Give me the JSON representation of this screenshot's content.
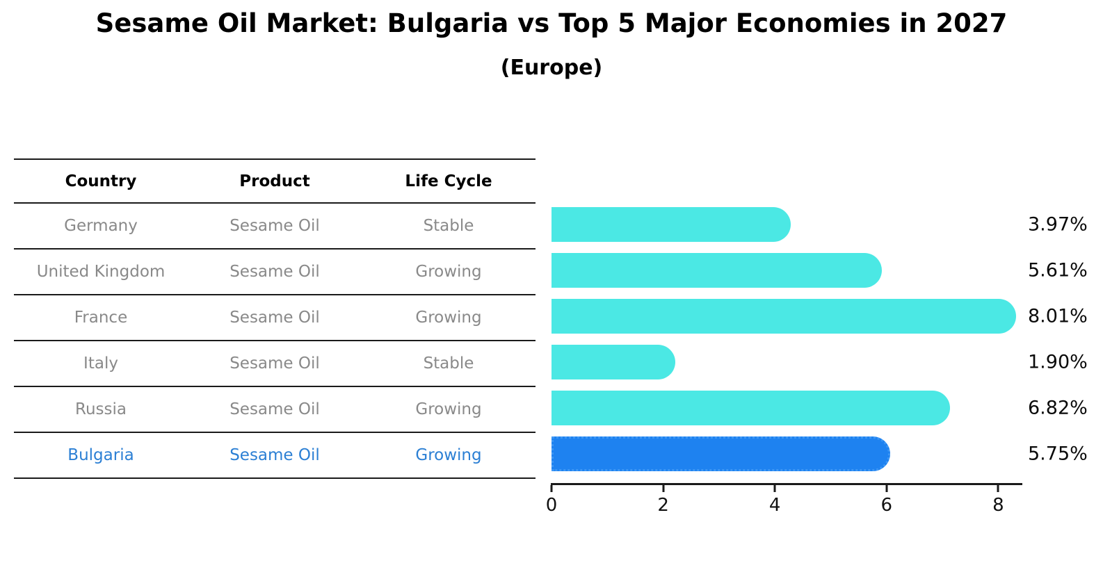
{
  "title": "Sesame Oil Market: Bulgaria vs Top 5 Major Economies in 2027",
  "subtitle": "(Europe)",
  "table": {
    "headers": [
      "Country",
      "Product",
      "Life Cycle"
    ],
    "rows": [
      {
        "country": "Germany",
        "product": "Sesame Oil",
        "life_cycle": "Stable",
        "highlight": false
      },
      {
        "country": "United Kingdom",
        "product": "Sesame Oil",
        "life_cycle": "Growing",
        "highlight": false
      },
      {
        "country": "France",
        "product": "Sesame Oil",
        "life_cycle": "Growing",
        "highlight": false
      },
      {
        "country": "Italy",
        "product": "Sesame Oil",
        "life_cycle": "Stable",
        "highlight": false
      },
      {
        "country": "Russia",
        "product": "Sesame Oil",
        "life_cycle": "Growing",
        "highlight": false
      },
      {
        "country": "Bulgaria",
        "product": "Sesame Oil",
        "life_cycle": "Growing",
        "highlight": true
      }
    ]
  },
  "chart_data": {
    "type": "bar",
    "orientation": "horizontal",
    "title": "Sesame Oil Market: Bulgaria vs Top 5 Major Economies in 2027",
    "subtitle": "(Europe)",
    "categories": [
      "Germany",
      "United Kingdom",
      "France",
      "Italy",
      "Russia",
      "Bulgaria"
    ],
    "values": [
      3.97,
      5.61,
      8.01,
      1.9,
      6.82,
      5.75
    ],
    "value_labels": [
      "3.97%",
      "5.61%",
      "8.01%",
      "1.90%",
      "6.82%",
      "5.75%"
    ],
    "xlabel": "",
    "ylabel": "",
    "xticks": [
      0,
      2,
      4,
      6,
      8
    ],
    "xlim": [
      0,
      8.45
    ],
    "grid": false,
    "legend": false,
    "highlight_index": 5,
    "bar_color": "#4BE8E4",
    "highlight_bar_color": "#1E82F0"
  },
  "colors": {
    "background": "#FFFFFF",
    "bar_cyan": "#4BE8E4",
    "bar_blue": "#1E82F0",
    "table_text_gray": "#898989",
    "highlight_text_blue": "#2B7FD4",
    "line_black": "#1A1A1A"
  }
}
